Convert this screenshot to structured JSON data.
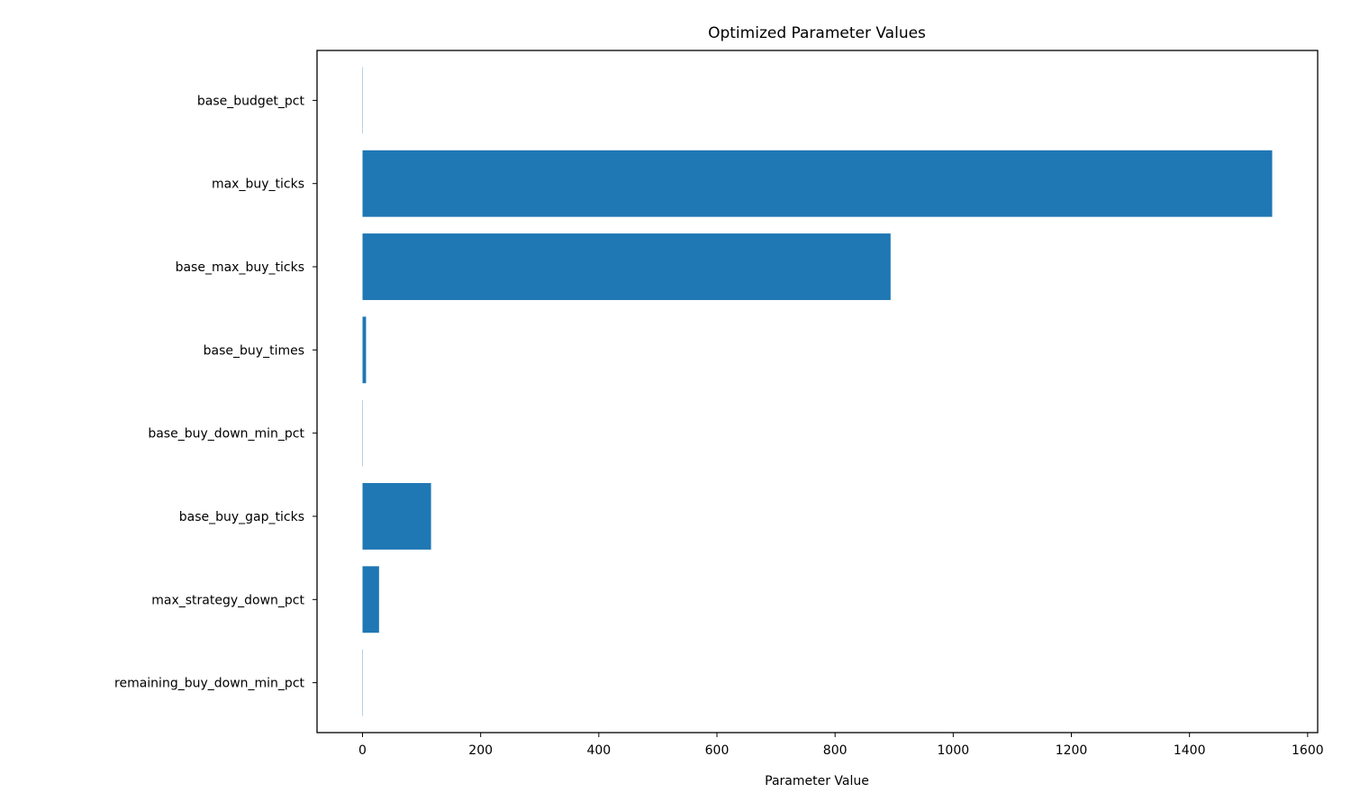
{
  "chart_data": {
    "type": "bar",
    "orientation": "horizontal",
    "title": "Optimized Parameter Values",
    "xlabel": "Parameter Value",
    "ylabel": "",
    "categories": [
      "base_budget_pct",
      "max_buy_ticks",
      "base_max_buy_ticks",
      "base_buy_times",
      "base_buy_down_min_pct",
      "base_buy_gap_ticks",
      "max_strategy_down_pct",
      "remaining_buy_down_min_pct"
    ],
    "values": [
      0.5,
      1540,
      894,
      6,
      0.5,
      116,
      28,
      0.5
    ],
    "xlim": [
      -77,
      1617
    ],
    "xticks": [
      0,
      200,
      400,
      600,
      800,
      1000,
      1200,
      1400,
      1600
    ],
    "grid": false,
    "bar_color": "#1f77b4"
  }
}
